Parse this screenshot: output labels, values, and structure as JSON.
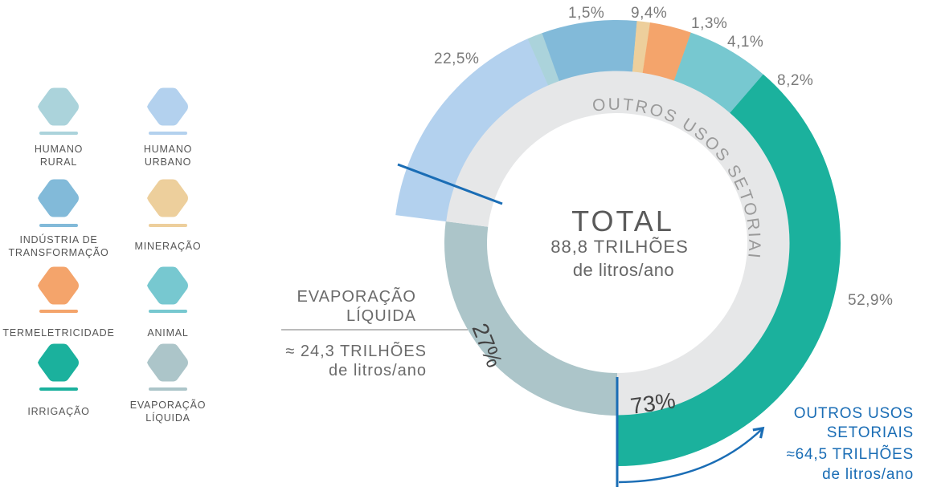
{
  "chart_data": {
    "type": "pie",
    "title": "TOTAL",
    "total_value": "88,8 TRILHÕES",
    "total_unit": "de litros/ano",
    "ring_label": "OUTROS USOS SETORIAIS",
    "inner_split": [
      {
        "name": "EVAPORAÇÃO LÍQUIDA",
        "value": 27,
        "label": "27%",
        "color": "#acc5c9"
      },
      {
        "name": "OUTROS USOS SETORIAIS",
        "value": 73,
        "label": "73%",
        "color": "#e6e7e8"
      }
    ],
    "series": [
      {
        "name": "HUMANO URBANO",
        "value": 22.5,
        "label": "22,5%",
        "color": "#b3d1ee"
      },
      {
        "name": "HUMANO RURAL",
        "value": 1.5,
        "label": "1,5%",
        "color": "#abd3db"
      },
      {
        "name": "INDÚSTRIA DE TRANSFORMAÇÃO",
        "value": 9.4,
        "label": "9,4%",
        "color": "#82bad9"
      },
      {
        "name": "MINERAÇÃO",
        "value": 1.3,
        "label": "1,3%",
        "color": "#edcf9c"
      },
      {
        "name": "TERMELETRICIDADE",
        "value": 4.1,
        "label": "4,1%",
        "color": "#f4a46b"
      },
      {
        "name": "ANIMAL",
        "value": 8.2,
        "label": "8,2%",
        "color": "#77c8d0"
      },
      {
        "name": "IRRIGAÇÃO",
        "value": 52.9,
        "label": "52,9%",
        "color": "#1bb19d"
      }
    ],
    "evaporation_note": {
      "line1": "EVAPORAÇÃO",
      "line2": "LÍQUIDA",
      "line3": "≈ 24,3 TRILHÕES",
      "line4": "de litros/ano"
    },
    "outros_note": {
      "line1": "OUTROS USOS",
      "line2": "SETORIAIS",
      "line3": "≈64,5 TRILHÕES",
      "line4": "de litros/ano"
    },
    "legend": [
      {
        "l1": "HUMANO",
        "l2": "RURAL",
        "color": "#abd3db"
      },
      {
        "l1": "HUMANO",
        "l2": "URBANO",
        "color": "#b3d1ee"
      },
      {
        "l1": "INDÚSTRIA DE",
        "l2": "TRANSFORMAÇÃO",
        "color": "#82bad9"
      },
      {
        "l1": "MINERAÇÃO",
        "l2": "",
        "color": "#edcf9c"
      },
      {
        "l1": "TERMELETRICIDADE",
        "l2": "",
        "color": "#f4a46b"
      },
      {
        "l1": "ANIMAL",
        "l2": "",
        "color": "#77c8d0"
      },
      {
        "l1": "IRRIGAÇÃO",
        "l2": "",
        "color": "#1bb19d"
      },
      {
        "l1": "EVAPORAÇÃO",
        "l2": "LÍQUIDA",
        "color": "#acc5c9"
      }
    ],
    "accent": "#1a6db5"
  }
}
